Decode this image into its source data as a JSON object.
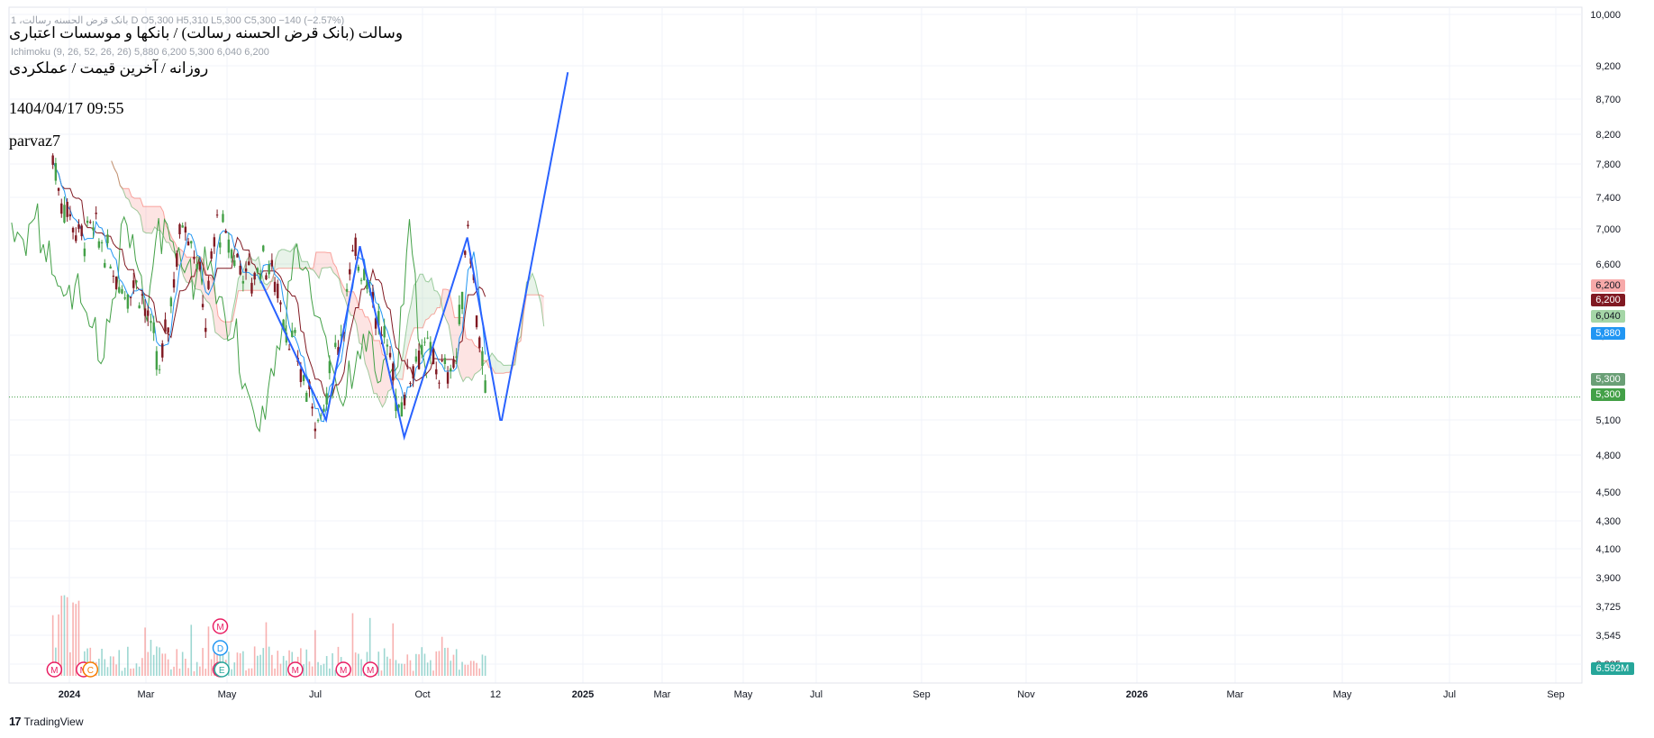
{
  "header": {
    "legend_line1": "1 ،بانک قرض الحسنه رسالت D  O5,300  H5,310  L5,300  C5,300  −140 (−2.57%)",
    "legend_line2": "Ichimoku (9, 26, 52, 26, 26)  5,880  6,200  5,300  6,040  6,200",
    "title": "وسالت (بانک قرض الحسنه رسالت) / بانکها و موسسات اعتباری",
    "subtitle": "روزانه / آخرین قیمت / عملکردی",
    "date": "1404/04/17 09:55",
    "author": "parvaz7"
  },
  "price_tags": [
    {
      "label": "6,200",
      "color": "#f7a9a9"
    },
    {
      "label": "6,200",
      "color": "#801922"
    },
    {
      "label": "6,040",
      "color": "#a5d6a7"
    },
    {
      "label": "5,880",
      "color": "#2196f3"
    },
    {
      "label": "5,300",
      "color": "#6a9f76"
    },
    {
      "label": "5,300",
      "color": "#43a047"
    }
  ],
  "volume_tag": {
    "label": "6.592M",
    "color": "#26a69a"
  },
  "footer": {
    "logo": "17",
    "brand": "TradingView"
  },
  "colors": {
    "up": "#43a047",
    "down": "#801922",
    "tenkan": "#2196f3",
    "kijun": "#801922",
    "chikou": "#43a047",
    "pattern": "#2962ff"
  },
  "chart_data": {
    "type": "candlestick",
    "scale": "log",
    "ylim": [
      3300,
      10000
    ],
    "y_ticks": [
      "10,000",
      "9,200",
      "8,700",
      "8,200",
      "7,800",
      "7,400",
      "7,000",
      "6,600",
      "6,200",
      "5,880",
      "5,100",
      "4,800",
      "4,500",
      "4,300",
      "4,100",
      "3,900",
      "3,725",
      "3,545",
      "3,385"
    ],
    "x_ticks": [
      {
        "label": "2024",
        "bold": true
      },
      {
        "label": "Mar"
      },
      {
        "label": "May"
      },
      {
        "label": "Jul"
      },
      {
        "label": "Oct"
      },
      {
        "label": "12"
      },
      {
        "label": "2025",
        "bold": true
      },
      {
        "label": "Mar"
      },
      {
        "label": "May"
      },
      {
        "label": "Jul"
      },
      {
        "label": "Sep"
      },
      {
        "label": "Nov"
      },
      {
        "label": "2026",
        "bold": true
      },
      {
        "label": "Mar"
      },
      {
        "label": "May"
      },
      {
        "label": "Jul"
      },
      {
        "label": "Sep"
      }
    ],
    "last_price": 5300,
    "price_series": [
      [
        "2023-12-10",
        7900
      ],
      [
        "2023-12-20",
        7400
      ],
      [
        "2024-01-01",
        7200
      ],
      [
        "2024-01-15",
        6900
      ],
      [
        "2024-02-01",
        7000
      ],
      [
        "2024-02-15",
        6800
      ],
      [
        "2024-03-01",
        6500
      ],
      [
        "2024-03-15",
        6300
      ],
      [
        "2024-04-01",
        6400
      ],
      [
        "2024-04-15",
        6000
      ],
      [
        "2024-05-01",
        5500
      ],
      [
        "2024-05-15",
        6200
      ],
      [
        "2024-06-01",
        7200
      ],
      [
        "2024-06-15",
        6800
      ],
      [
        "2024-07-01",
        6000
      ],
      [
        "2024-07-15",
        7100
      ],
      [
        "2024-08-01",
        6800
      ],
      [
        "2024-08-15",
        6600
      ],
      [
        "2024-09-01",
        6400
      ],
      [
        "2024-09-15",
        6700
      ],
      [
        "2024-10-01",
        6400
      ],
      [
        "2024-10-15",
        6000
      ],
      [
        "2024-11-01",
        5600
      ],
      [
        "2024-11-15",
        5300
      ],
      [
        "2024-12-01",
        5100
      ],
      [
        "2024-12-15",
        5500
      ],
      [
        "2025-01-01",
        6100
      ],
      [
        "2025-01-15",
        6700
      ],
      [
        "2025-02-01",
        6500
      ],
      [
        "2025-02-15",
        6000
      ],
      [
        "2025-03-01",
        5700
      ],
      [
        "2025-03-15",
        5200
      ],
      [
        "2025-04-01",
        5600
      ],
      [
        "2025-04-15",
        5800
      ],
      [
        "2025-05-01",
        5600
      ],
      [
        "2025-05-15",
        5500
      ],
      [
        "2025-06-01",
        5700
      ],
      [
        "2025-06-15",
        7100
      ],
      [
        "2025-06-25",
        6200
      ],
      [
        "2025-07-08",
        5300
      ]
    ],
    "pattern_points": [
      [
        "2024-09-12",
        6400
      ],
      [
        "2024-12-08",
        5100
      ],
      [
        "2025-01-22",
        6800
      ],
      [
        "2025-03-22",
        4950
      ],
      [
        "2025-06-14",
        6900
      ],
      [
        "2025-07-28",
        5100
      ],
      [
        "2025-07-30",
        5100
      ],
      [
        "2025-10-26",
        9100
      ]
    ],
    "volume": {
      "max": 6.592,
      "unit": "M"
    },
    "events": [
      {
        "x": "2023-12-12",
        "label": "M",
        "color": "#e91e63"
      },
      {
        "x": "2024-01-20",
        "label": "M",
        "color": "#e91e63"
      },
      {
        "x": "2024-01-29",
        "label": "C",
        "color": "#f57c00"
      },
      {
        "x": "2024-07-20",
        "label": "M",
        "color": "#e91e63",
        "row": 2
      },
      {
        "x": "2024-07-20",
        "label": "D",
        "color": "#2196f3",
        "row": 1
      },
      {
        "x": "2024-07-20",
        "label": "M",
        "color": "#e91e63"
      },
      {
        "x": "2024-07-22",
        "label": "E",
        "color": "#26a69a"
      },
      {
        "x": "2024-10-28",
        "label": "M",
        "color": "#e91e63"
      },
      {
        "x": "2024-12-31",
        "label": "M",
        "color": "#e91e63"
      },
      {
        "x": "2025-02-05",
        "label": "M",
        "color": "#e91e63"
      }
    ]
  }
}
